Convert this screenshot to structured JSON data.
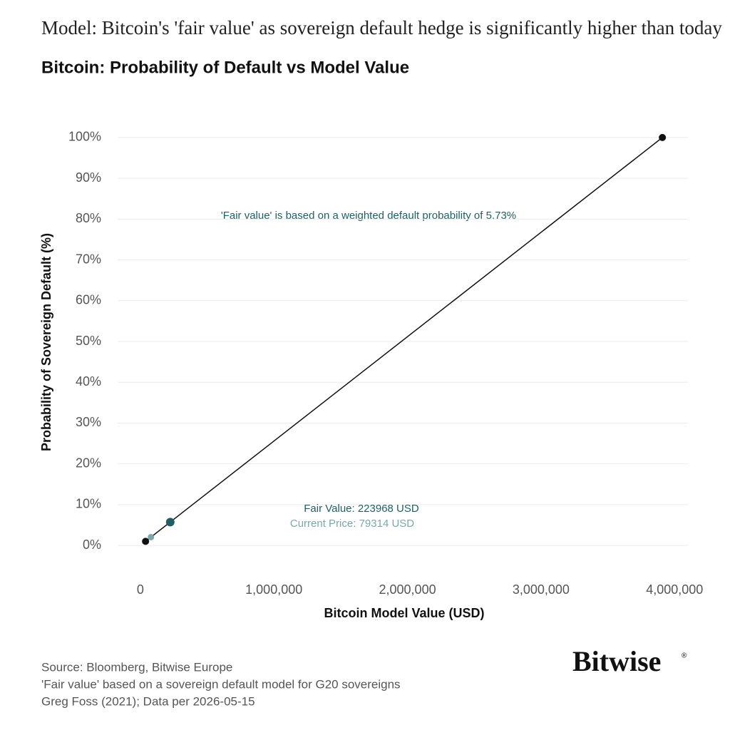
{
  "headline": "Model: Bitcoin's 'fair value' as sovereign default hedge is significantly higher than today",
  "chart_data": {
    "type": "line",
    "title": "Bitcoin: Probability of Default vs Model Value",
    "x_label": "Bitcoin Model Value (USD)",
    "y_label": "Probability of Sovereign Default (%)",
    "series": [
      {
        "color": "#111111",
        "x": [
          39087,
          3908691
        ],
        "values": [
          1,
          100
        ]
      }
    ],
    "points": [
      {
        "label": "Fair Value: 223968 USD",
        "x": 223968,
        "y": 5.73,
        "color": "#1f5f63"
      },
      {
        "label": "Current Price: 79314 USD",
        "x": 79314,
        "y": 2.03,
        "color": "#7aa7ab"
      }
    ],
    "annotation": "'Fair value' is based on a weighted default probability of 5.73%",
    "xlim": [
      -170000,
      4100000
    ],
    "xticks": [
      0,
      {
        "value": 1000000,
        "label": "1,000,000"
      },
      {
        "value": 2000000,
        "label": "2,000,000"
      },
      {
        "value": 3000000,
        "label": "3,000,000"
      },
      {
        "value": 4000000,
        "label": "4,000,000"
      }
    ],
    "ylim": [
      -4,
      104
    ],
    "yticks": [
      {
        "value": 0,
        "label": "0%"
      },
      {
        "value": 10,
        "label": "10%"
      },
      {
        "value": 20,
        "label": "20%"
      },
      {
        "value": 30,
        "label": "30%"
      },
      {
        "value": 40,
        "label": "40%"
      },
      {
        "value": 50,
        "label": "50%"
      },
      {
        "value": 60,
        "label": "60%"
      },
      {
        "value": 70,
        "label": "70%"
      },
      {
        "value": 80,
        "label": "80%"
      },
      {
        "value": 90,
        "label": "90%"
      },
      {
        "value": 100,
        "label": "100%"
      }
    ],
    "grid": true
  },
  "footer": [
    "Source: Bloomberg, Bitwise Europe",
    "'Fair value' based on a sovereign default model for G20 sovereigns",
    "Greg Foss (2021); Data per 2026-05-15"
  ],
  "logo": "Bitwise",
  "logo_mark": "®"
}
